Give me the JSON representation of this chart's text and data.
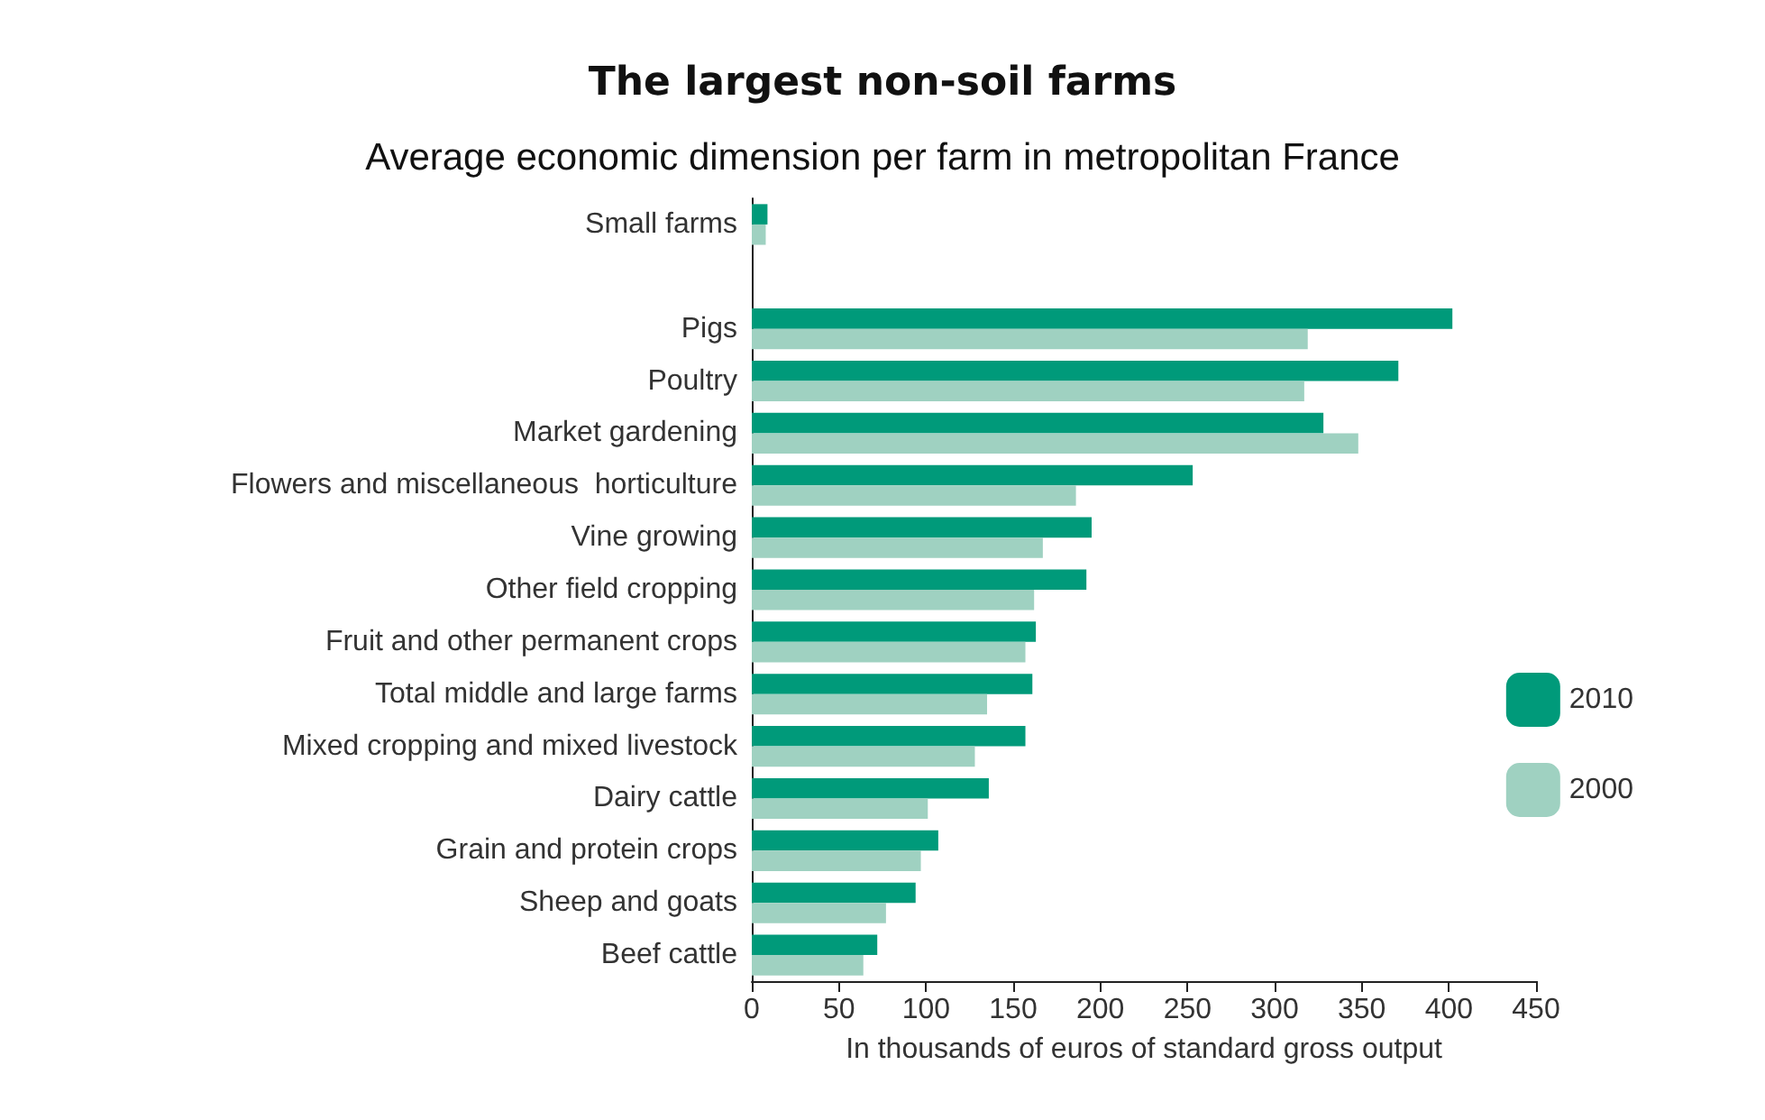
{
  "chart_data": {
    "type": "bar",
    "orientation": "horizontal",
    "title": "The largest non-soil farms",
    "subtitle": "Average economic dimension per farm in metropolitan France",
    "xlabel": "In thousands of euros of standard gross output",
    "categories": [
      "Small farms",
      null,
      "Pigs",
      "Poultry",
      "Market gardening",
      "Flowers and miscellaneous  horticulture",
      "Vine growing",
      "Other field cropping",
      "Fruit and other permanent crops",
      "Total middle and large farms",
      "Mixed cropping and mixed livestock",
      "Dairy cattle",
      "Grain and protein crops",
      "Sheep and goats",
      "Beef cattle"
    ],
    "series": [
      {
        "name": "2010",
        "color": "#009a7a",
        "values": [
          9,
          null,
          402,
          371,
          328,
          253,
          195,
          192,
          163,
          161,
          157,
          136,
          107,
          94,
          72
        ]
      },
      {
        "name": "2000",
        "color": "#9fd1c1",
        "values": [
          8,
          null,
          319,
          317,
          348,
          186,
          167,
          162,
          157,
          135,
          128,
          101,
          97,
          77,
          64
        ]
      }
    ],
    "xlim": [
      0,
      450
    ],
    "xticks": [
      0,
      50,
      100,
      150,
      200,
      250,
      300,
      350,
      400,
      450
    ],
    "grid": false,
    "legend": "right"
  }
}
